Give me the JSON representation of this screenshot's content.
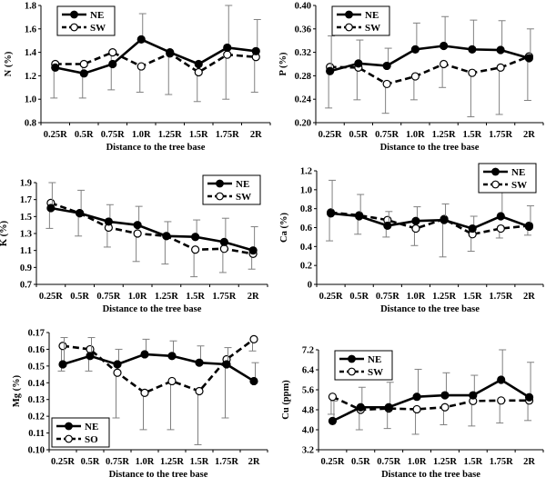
{
  "colors": {
    "ne": "#000000",
    "sw": "#000000",
    "errorbar": "#808080",
    "marker_open": "#ffffff"
  },
  "chart_data": [
    {
      "type": "line",
      "id": "N",
      "ylabel": "N (%)",
      "xlabel": "Distance to the tree base",
      "categories": [
        "0.25R",
        "0.5R",
        "0.75R",
        "1.0R",
        "1.25R",
        "1.5R",
        "1.75R",
        "2R"
      ],
      "ylim": [
        0.8,
        1.8
      ],
      "yticks": [
        "0.8",
        "1.0",
        "1.2",
        "1.4",
        "1.6",
        "1.8"
      ],
      "ytick_values": [
        0.8,
        1.0,
        1.2,
        1.4,
        1.6,
        1.8
      ],
      "legend": "top-left",
      "series": [
        {
          "name": "NE",
          "style": "solid-filled",
          "values": [
            1.27,
            1.22,
            1.3,
            1.51,
            1.4,
            1.3,
            1.44,
            1.41
          ],
          "err": [
            0,
            0,
            0,
            0.22,
            0,
            0,
            0.36,
            0.27
          ]
        },
        {
          "name": "SW",
          "style": "dashed-open",
          "values": [
            1.3,
            1.3,
            1.4,
            1.28,
            1.39,
            1.23,
            1.38,
            1.36
          ],
          "err": [
            0.29,
            0.29,
            0.32,
            0.22,
            0.35,
            0.25,
            0.38,
            0.3
          ]
        }
      ]
    },
    {
      "type": "line",
      "id": "P",
      "ylabel": "P (%)",
      "xlabel": "Distance to the tree base",
      "categories": [
        "0.25R",
        "0.5R",
        "0.75R",
        "1.0R",
        "1.25R",
        "1.5R",
        "1.75R",
        "2R"
      ],
      "ylim": [
        0.2,
        0.4
      ],
      "yticks": [
        "0.20",
        "0.24",
        "0.28",
        "0.32",
        "0.36",
        "0.40"
      ],
      "ytick_values": [
        0.2,
        0.24,
        0.28,
        0.32,
        0.36,
        0.4
      ],
      "legend": "top-left",
      "series": [
        {
          "name": "NE",
          "style": "solid-filled",
          "values": [
            0.288,
            0.301,
            0.297,
            0.325,
            0.331,
            0.325,
            0.324,
            0.31
          ],
          "err": [
            0.06,
            0.04,
            0.03,
            0.045,
            0.05,
            0.05,
            0.05,
            0.05
          ]
        },
        {
          "name": "SW",
          "style": "dashed-open",
          "values": [
            0.295,
            0.294,
            0.266,
            0.279,
            0.3,
            0.285,
            0.294,
            0.313
          ],
          "err": [
            0.07,
            0.055,
            0.05,
            0.04,
            0.04,
            0.075,
            0.08,
            0.075
          ]
        }
      ]
    },
    {
      "type": "line",
      "id": "K",
      "ylabel": "K (%)",
      "xlabel": "Distance to the tree base",
      "categories": [
        "0.25R",
        "0.5R",
        "0.75R",
        "1.0R",
        "1.25R",
        "1.5R",
        "1.75R",
        "2R"
      ],
      "ylim": [
        0.7,
        1.9
      ],
      "yticks": [
        "0.7",
        "0.9",
        "1.1",
        "1.3",
        "1.5",
        "1.7",
        "1.9"
      ],
      "ytick_values": [
        0.7,
        0.9,
        1.1,
        1.3,
        1.5,
        1.7,
        1.9
      ],
      "legend": "top-right",
      "series": [
        {
          "name": "NE",
          "style": "solid-filled",
          "values": [
            1.6,
            1.54,
            1.44,
            1.4,
            1.27,
            1.26,
            1.2,
            1.1
          ],
          "err": [
            0.35,
            0.27,
            0.2,
            0.22,
            0.17,
            0.2,
            0.28,
            0.28
          ]
        },
        {
          "name": "SW",
          "style": "dashed-open",
          "values": [
            1.66,
            1.54,
            1.37,
            1.3,
            1.27,
            1.11,
            1.12,
            1.06
          ],
          "err": [
            0.3,
            0.27,
            0.23,
            0.33,
            0.33,
            0.32,
            0.28,
            0.18
          ]
        }
      ]
    },
    {
      "type": "line",
      "id": "Ca",
      "ylabel": "Ca (%)",
      "xlabel": "Distance to the tree base",
      "categories": [
        "0.25R",
        "0.5R",
        "0.75R",
        "1.0R",
        "1.25R",
        "1.5R",
        "1.75R",
        "2R"
      ],
      "ylim": [
        0,
        1.2
      ],
      "yticks": [
        "0",
        "0.2",
        "0.4",
        "0.6",
        "0.8",
        "1.0",
        "1.2"
      ],
      "ytick_values": [
        0,
        0.2,
        0.4,
        0.6,
        0.8,
        1.0,
        1.2
      ],
      "legend": "top-right",
      "series": [
        {
          "name": "NE",
          "style": "solid-filled",
          "values": [
            0.75,
            0.72,
            0.62,
            0.67,
            0.68,
            0.59,
            0.72,
            0.61
          ],
          "err": [
            0.35,
            0.23,
            0.15,
            0.15,
            0.17,
            0.13,
            0.4,
            0.22
          ]
        },
        {
          "name": "SW",
          "style": "dashed-open",
          "values": [
            0.76,
            0.73,
            0.68,
            0.59,
            0.69,
            0.53,
            0.59,
            0.62
          ],
          "err": [
            0.3,
            0.2,
            0.18,
            0.18,
            0.4,
            0.18,
            0.1,
            0.1
          ]
        }
      ]
    },
    {
      "type": "line",
      "id": "Mg",
      "ylabel": "Mg (%)",
      "xlabel": "Distance to the tree base",
      "categories": [
        "0.25R",
        "0.5R",
        "0.75R",
        "1.0R",
        "1.25R",
        "1.5R",
        "1.75R",
        "2R"
      ],
      "ylim": [
        0.1,
        0.17
      ],
      "yticks": [
        "0.10",
        "0.11",
        "0.12",
        "0.13",
        "0.14",
        "0.15",
        "0.16",
        "0.17"
      ],
      "ytick_values": [
        0.1,
        0.11,
        0.12,
        0.13,
        0.14,
        0.15,
        0.16,
        0.17
      ],
      "legend": "bottom-left",
      "series": [
        {
          "name": "NE",
          "style": "solid-filled",
          "values": [
            0.151,
            0.156,
            0.151,
            0.157,
            0.156,
            0.152,
            0.151,
            0.141
          ],
          "err": [
            0.016,
            0.011,
            0.009,
            0.009,
            0.009,
            0.01,
            0.01,
            0.011
          ]
        },
        {
          "name": "SO",
          "style": "dashed-open",
          "values": [
            0.162,
            0.16,
            0.146,
            0.134,
            0.141,
            0.135,
            0.154,
            0.166
          ],
          "err": [
            0.015,
            0.013,
            0.027,
            0.022,
            0.029,
            0.032,
            0.035,
            0.007
          ]
        }
      ]
    },
    {
      "type": "line",
      "id": "Cu",
      "ylabel": "Cu (ppm)",
      "xlabel": "Distance to the tree base",
      "categories": [
        "0.25R",
        "0.5R",
        "0.75R",
        "1.0R",
        "1.25R",
        "1.5R",
        "1.75R",
        "2R"
      ],
      "ylim": [
        3.2,
        7.2
      ],
      "yticks": [
        "3.2",
        "4.0",
        "4.8",
        "5.6",
        "6.4",
        "7.2"
      ],
      "ytick_values": [
        3.2,
        4.0,
        4.8,
        5.6,
        6.4,
        7.2
      ],
      "legend": "top-left",
      "series": [
        {
          "name": "NE",
          "style": "solid-filled",
          "values": [
            4.35,
            4.9,
            4.9,
            5.32,
            5.38,
            5.38,
            6.0,
            5.3
          ],
          "err": [
            0.8,
            0.8,
            1.0,
            1.1,
            0.9,
            0.8,
            1.6,
            1.4
          ]
        },
        {
          "name": "SW",
          "style": "dashed-open",
          "values": [
            5.32,
            4.8,
            4.85,
            4.82,
            4.9,
            5.15,
            5.17,
            5.17
          ],
          "err": [
            0.7,
            0.8,
            0.8,
            1.0,
            0.7,
            1.0,
            0.9,
            0.8
          ]
        }
      ]
    }
  ]
}
